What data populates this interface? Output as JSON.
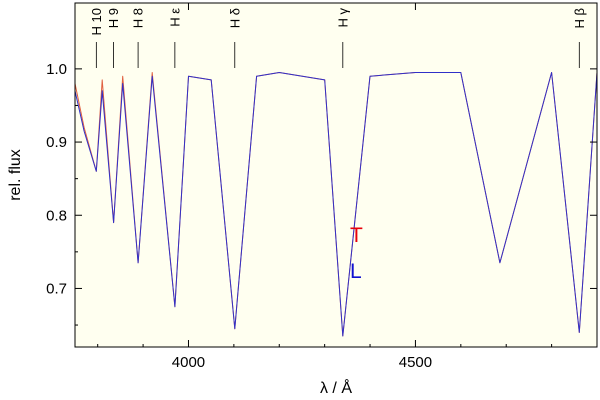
{
  "chart_data": {
    "type": "line",
    "xlabel": "λ / Å",
    "ylabel": "rel. flux",
    "xlim": [
      3750,
      4900
    ],
    "ylim": [
      0.62,
      1.09
    ],
    "xticks": [
      {
        "value": 4000,
        "label": "4000"
      },
      {
        "value": 4500,
        "label": "4500"
      }
    ],
    "yticks": [
      {
        "value": 0.7,
        "label": "0.7"
      },
      {
        "value": 0.8,
        "label": "0.8"
      },
      {
        "value": 0.9,
        "label": "0.9"
      },
      {
        "value": 1.0,
        "label": "1.0"
      }
    ],
    "grid": false,
    "background": "#fffff0",
    "line_labels": [
      {
        "label": "H 10",
        "x": 3797
      },
      {
        "label": "H 9",
        "x": 3835
      },
      {
        "label": "H 8",
        "x": 3889
      },
      {
        "label": "H ε",
        "x": 3970
      },
      {
        "label": "H δ",
        "x": 4102
      },
      {
        "label": "H γ",
        "x": 4340
      },
      {
        "label": "H β",
        "x": 4861
      }
    ],
    "legend": [
      {
        "name": "T",
        "color": "#e8000b"
      },
      {
        "name": "L",
        "color": "#1010d0"
      }
    ],
    "series": [
      {
        "name": "T",
        "color": "#e06040",
        "x": [
          3750,
          3770,
          3797,
          3810,
          3835,
          3855,
          3889,
          3920,
          3970,
          4000,
          4050,
          4102,
          4150,
          4200,
          4300,
          4340,
          4400,
          4500,
          4600,
          4686,
          4800,
          4861,
          4900
        ],
        "y": [
          0.98,
          0.92,
          0.86,
          0.985,
          0.79,
          0.99,
          0.735,
          0.995,
          0.675,
          0.99,
          0.985,
          0.645,
          0.99,
          0.995,
          0.985,
          0.635,
          0.99,
          0.995,
          0.995,
          0.735,
          0.995,
          0.64,
          0.995
        ]
      },
      {
        "name": "L",
        "color": "#3030c8",
        "x": [
          3750,
          3770,
          3797,
          3810,
          3835,
          3855,
          3889,
          3920,
          3970,
          4000,
          4050,
          4102,
          4150,
          4200,
          4300,
          4340,
          4400,
          4500,
          4600,
          4686,
          4800,
          4861,
          4900
        ],
        "y": [
          0.97,
          0.915,
          0.86,
          0.97,
          0.79,
          0.98,
          0.735,
          0.99,
          0.675,
          0.99,
          0.985,
          0.645,
          0.99,
          0.995,
          0.985,
          0.635,
          0.99,
          0.995,
          0.995,
          0.735,
          0.995,
          0.64,
          0.995
        ]
      }
    ]
  }
}
